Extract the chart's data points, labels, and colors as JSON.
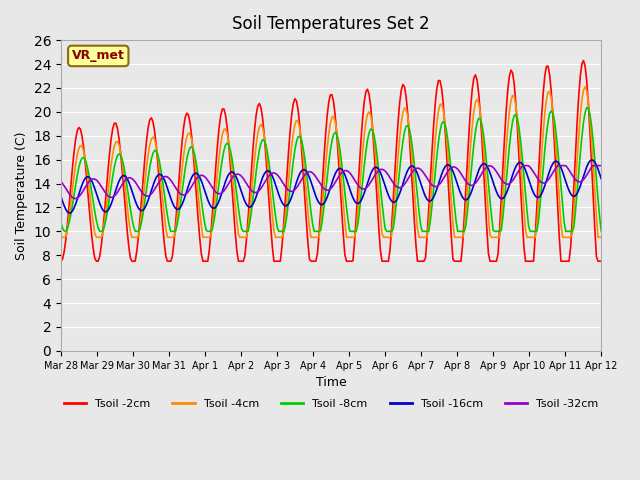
{
  "title": "Soil Temperatures Set 2",
  "xlabel": "Time",
  "ylabel": "Soil Temperature (C)",
  "ylim": [
    0,
    26
  ],
  "yticks": [
    0,
    2,
    4,
    6,
    8,
    10,
    12,
    14,
    16,
    18,
    20,
    22,
    24,
    26
  ],
  "background_color": "#e8e8e8",
  "plot_bg_color": "#e8e8e8",
  "annotation_text": "VR_met",
  "annotation_box_color": "#ffff99",
  "annotation_text_color": "#8b0000",
  "series_colors": {
    "Tsoil -2cm": "#ff0000",
    "Tsoil -4cm": "#ff8c00",
    "Tsoil -8cm": "#00cc00",
    "Tsoil -16cm": "#0000cc",
    "Tsoil -32cm": "#9900cc"
  },
  "x_labels": [
    "Mar 28",
    "Mar 29",
    "Mar 30",
    "Mar 31",
    "Apr 1",
    "Apr 2",
    "Apr 3",
    "Apr 4",
    "Apr 5",
    "Apr 6",
    "Apr 7",
    "Apr 8",
    "Apr 9",
    "Apr 10",
    "Apr 11",
    "Apr 12"
  ],
  "num_points": 336
}
